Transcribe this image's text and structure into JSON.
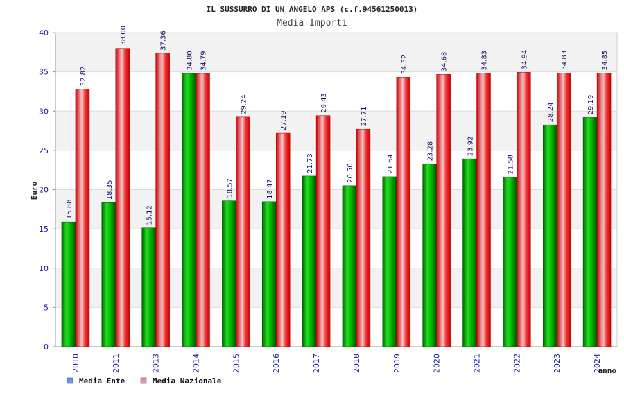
{
  "chart_data": {
    "type": "bar",
    "title": "IL SUSSURRO DI UN ANGELO APS (c.f.94561250013)",
    "subtitle": "Media Importi",
    "xlabel": "anno",
    "ylabel": "Euro",
    "ylim": [
      0,
      40
    ],
    "yticks": [
      0,
      5,
      10,
      15,
      20,
      25,
      30,
      35,
      40
    ],
    "grid": true,
    "legend": "bottom-left",
    "categories": [
      "2010",
      "2011",
      "2013",
      "2014",
      "2015",
      "2016",
      "2017",
      "2018",
      "2019",
      "2020",
      "2021",
      "2022",
      "2023",
      "2024"
    ],
    "series": [
      {
        "name": "Media Ente",
        "values": [
          15.88,
          18.35,
          15.12,
          34.8,
          18.57,
          18.47,
          21.73,
          20.5,
          21.64,
          23.28,
          23.92,
          21.58,
          28.24,
          29.19
        ],
        "labels": [
          "15.88",
          "18.35",
          "15.12",
          "34.80",
          "18.57",
          "18.47",
          "21.73",
          "20.50",
          "21.64",
          "23.28",
          "23.92",
          "21.58",
          "28.24",
          "29.19"
        ],
        "color": "#00aa00",
        "legend_color": "#6699ee"
      },
      {
        "name": "Media Nazionale",
        "values": [
          32.82,
          38.0,
          37.36,
          34.79,
          29.24,
          27.19,
          29.43,
          27.71,
          34.32,
          34.68,
          34.83,
          34.94,
          34.83,
          34.85
        ],
        "labels": [
          "32.82",
          "38.00",
          "37.36",
          "34.79",
          "29.24",
          "27.19",
          "29.43",
          "27.71",
          "34.32",
          "34.68",
          "34.83",
          "34.94",
          "34.83",
          "34.85"
        ],
        "color": "#ee1111",
        "legend_color": "#ee88bb"
      }
    ]
  }
}
